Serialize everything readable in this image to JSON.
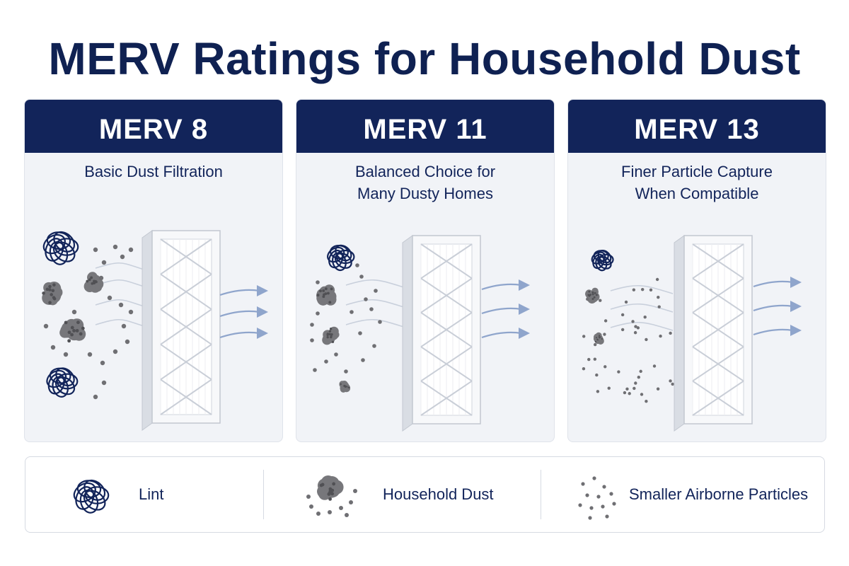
{
  "title": "MERV Ratings for Household Dust",
  "colors": {
    "navy": "#12245a",
    "card_bg": "#f1f3f7",
    "arrow_blue": "#8fa5cc",
    "particle_gray": "#6f6f73"
  },
  "cards": [
    {
      "rating": "MERV 8",
      "subtitle": "Basic Dust Filtration"
    },
    {
      "rating": "MERV 11",
      "subtitle": "Balanced Choice for\nMany Dusty Homes"
    },
    {
      "rating": "MERV 13",
      "subtitle": "Finer Particle Capture\nWhen Compatible"
    }
  ],
  "legend": {
    "items": [
      {
        "label": "Lint",
        "icon": "lint-icon"
      },
      {
        "label": "Household Dust",
        "icon": "household-dust-icon"
      },
      {
        "label": "Smaller Airborne Particles",
        "icon": "airborne-particles-icon"
      }
    ]
  }
}
